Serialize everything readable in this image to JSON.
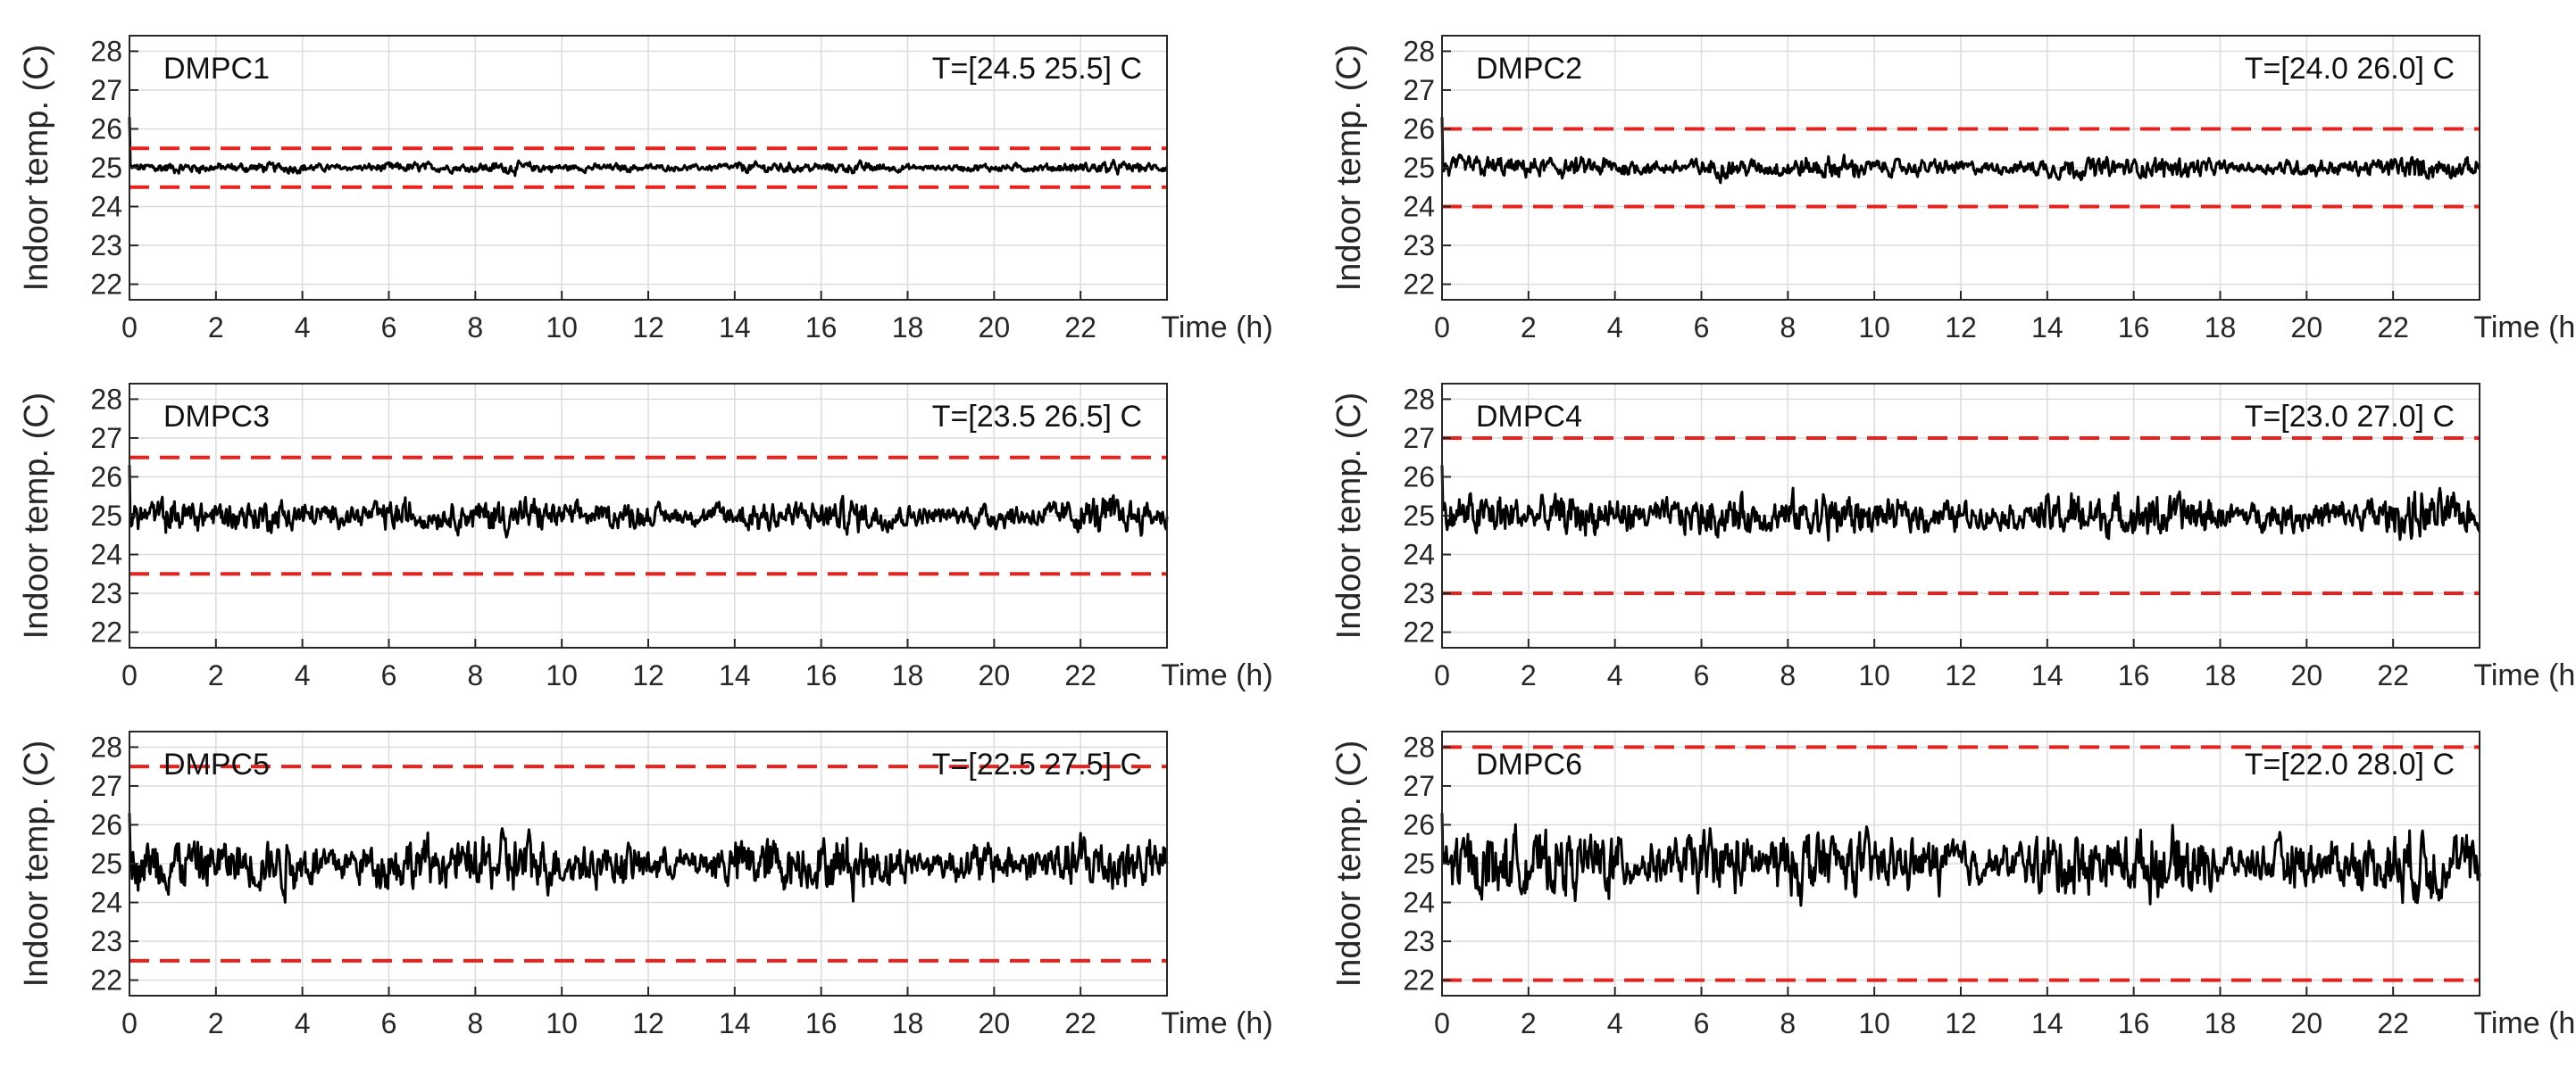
{
  "chart_data": [
    {
      "type": "line",
      "title": "DMPC1",
      "range_label": "T=[24.5  25.5] C",
      "bounds": [
        24.5,
        25.5
      ],
      "xlabel": "Time (h)",
      "ylabel": "Indoor temp. (C)",
      "xlim": [
        0,
        24
      ],
      "ylim": [
        21.6,
        28.4
      ],
      "xticks": [
        0,
        2,
        4,
        6,
        8,
        10,
        12,
        14,
        16,
        18,
        20,
        22
      ],
      "yticks": [
        22,
        23,
        24,
        25,
        26,
        27,
        28
      ],
      "grid": true,
      "series": [
        {
          "name": "Indoor temperature",
          "mean": 25.0,
          "amplitude": 0.08,
          "color": "#000000"
        },
        {
          "name": "Lower bound",
          "value": 24.5,
          "color": "#e8211c",
          "dash": true
        },
        {
          "name": "Upper bound",
          "value": 25.5,
          "color": "#e8211c",
          "dash": true
        }
      ]
    },
    {
      "type": "line",
      "title": "DMPC2",
      "range_label": "T=[24.0  26.0] C",
      "bounds": [
        24.0,
        26.0
      ],
      "xlabel": "Time (h)",
      "ylabel": "Indoor temp. (C)",
      "xlim": [
        0,
        24
      ],
      "ylim": [
        21.6,
        28.4
      ],
      "xticks": [
        0,
        2,
        4,
        6,
        8,
        10,
        12,
        14,
        16,
        18,
        20,
        22
      ],
      "yticks": [
        22,
        23,
        24,
        25,
        26,
        27,
        28
      ],
      "grid": true,
      "series": [
        {
          "name": "Indoor temperature",
          "mean": 25.0,
          "amplitude": 0.16,
          "color": "#000000"
        },
        {
          "name": "Lower bound",
          "value": 24.0,
          "color": "#e8211c",
          "dash": true
        },
        {
          "name": "Upper bound",
          "value": 26.0,
          "color": "#e8211c",
          "dash": true
        }
      ]
    },
    {
      "type": "line",
      "title": "DMPC3",
      "range_label": "T=[23.5  26.5] C",
      "bounds": [
        23.5,
        26.5
      ],
      "xlabel": "Time (h)",
      "ylabel": "Indoor temp. (C)",
      "xlim": [
        0,
        24
      ],
      "ylim": [
        21.6,
        28.4
      ],
      "xticks": [
        0,
        2,
        4,
        6,
        8,
        10,
        12,
        14,
        16,
        18,
        20,
        22
      ],
      "yticks": [
        22,
        23,
        24,
        25,
        26,
        27,
        28
      ],
      "grid": true,
      "series": [
        {
          "name": "Indoor temperature",
          "mean": 25.0,
          "amplitude": 0.25,
          "color": "#000000"
        },
        {
          "name": "Lower bound",
          "value": 23.5,
          "color": "#e8211c",
          "dash": true
        },
        {
          "name": "Upper bound",
          "value": 26.5,
          "color": "#e8211c",
          "dash": true
        }
      ]
    },
    {
      "type": "line",
      "title": "DMPC4",
      "range_label": "T=[23.0  27.0] C",
      "bounds": [
        23.0,
        27.0
      ],
      "xlabel": "Time (h)",
      "ylabel": "Indoor temp. (C)",
      "xlim": [
        0,
        24
      ],
      "ylim": [
        21.6,
        28.4
      ],
      "xticks": [
        0,
        2,
        4,
        6,
        8,
        10,
        12,
        14,
        16,
        18,
        20,
        22
      ],
      "yticks": [
        22,
        23,
        24,
        25,
        26,
        27,
        28
      ],
      "grid": true,
      "series": [
        {
          "name": "Indoor temperature",
          "mean": 25.0,
          "amplitude": 0.33,
          "color": "#000000"
        },
        {
          "name": "Lower bound",
          "value": 23.0,
          "color": "#e8211c",
          "dash": true
        },
        {
          "name": "Upper bound",
          "value": 27.0,
          "color": "#e8211c",
          "dash": true
        }
      ]
    },
    {
      "type": "line",
      "title": "DMPC5",
      "range_label": "T=[22.5  27.5] C",
      "bounds": [
        22.5,
        27.5
      ],
      "xlabel": "Time (h)",
      "ylabel": "Indoor temp. (C)",
      "xlim": [
        0,
        24
      ],
      "ylim": [
        21.6,
        28.4
      ],
      "xticks": [
        0,
        2,
        4,
        6,
        8,
        10,
        12,
        14,
        16,
        18,
        20,
        22
      ],
      "yticks": [
        22,
        23,
        24,
        25,
        26,
        27,
        28
      ],
      "grid": true,
      "series": [
        {
          "name": "Indoor temperature",
          "mean": 25.0,
          "amplitude": 0.42,
          "color": "#000000"
        },
        {
          "name": "Lower bound",
          "value": 22.5,
          "color": "#e8211c",
          "dash": true
        },
        {
          "name": "Upper bound",
          "value": 27.5,
          "color": "#e8211c",
          "dash": true
        }
      ]
    },
    {
      "type": "line",
      "title": "DMPC6",
      "range_label": "T=[22.0  28.0] C",
      "bounds": [
        22.0,
        28.0
      ],
      "xlabel": "Time (h)",
      "ylabel": "Indoor temp. (C)",
      "xlim": [
        0,
        24
      ],
      "ylim": [
        21.6,
        28.4
      ],
      "xticks": [
        0,
        2,
        4,
        6,
        8,
        10,
        12,
        14,
        16,
        18,
        20,
        22
      ],
      "yticks": [
        22,
        23,
        24,
        25,
        26,
        27,
        28
      ],
      "grid": true,
      "series": [
        {
          "name": "Indoor temperature",
          "mean": 25.0,
          "amplitude": 0.5,
          "color": "#000000"
        },
        {
          "name": "Lower bound",
          "value": 22.0,
          "color": "#e8211c",
          "dash": true
        },
        {
          "name": "Upper bound",
          "value": 28.0,
          "color": "#e8211c",
          "dash": true
        }
      ]
    }
  ]
}
